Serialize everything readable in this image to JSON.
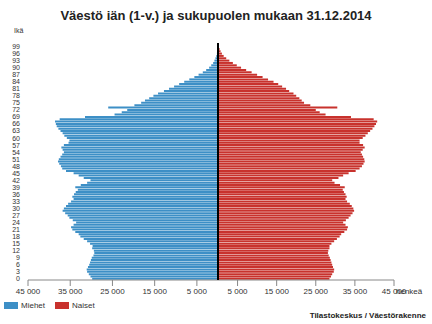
{
  "chart_data": {
    "type": "bar",
    "orientation": "horizontal",
    "title": "Väestö iän (1-v.) ja sukupuolen mukaan 31.12.2014",
    "y_label": "Ikä",
    "x_label": "henkeä",
    "source": "Tilastokeskus / Väestörakenne",
    "grid": false,
    "legend": "bottom left",
    "categories": [
      "0",
      null,
      null,
      "3",
      null,
      null,
      "6",
      null,
      null,
      "9",
      null,
      null,
      "12",
      null,
      null,
      "15",
      null,
      null,
      "18",
      null,
      null,
      "21",
      null,
      null,
      "24",
      null,
      null,
      "27",
      null,
      null,
      "30",
      null,
      null,
      "33",
      null,
      null,
      "36",
      null,
      null,
      "39",
      null,
      null,
      "42",
      null,
      null,
      "45",
      null,
      null,
      "48",
      null,
      null,
      "51",
      null,
      null,
      "54",
      null,
      null,
      "57",
      null,
      null,
      "60",
      null,
      null,
      "63",
      null,
      null,
      "66",
      null,
      null,
      "69",
      null,
      null,
      "72",
      null,
      null,
      "75",
      null,
      null,
      "78",
      null,
      null,
      "81",
      null,
      null,
      "84",
      null,
      null,
      "87",
      null,
      null,
      "90",
      null,
      null,
      "93",
      null,
      null,
      "96",
      null,
      null,
      "99",
      null
    ],
    "xlim": [
      0,
      45000
    ],
    "xticks": [
      {
        "value": 5000,
        "label": "5 000"
      },
      {
        "value": 15000,
        "label": "15 000"
      },
      {
        "value": 25000,
        "label": "25 000"
      },
      {
        "value": 35000,
        "label": "35 000"
      },
      {
        "value": 45000,
        "label": "45 000"
      }
    ],
    "series": [
      {
        "name": "Miehet",
        "color": "#3d8fc6",
        "values": [
          29800,
          30200,
          30600,
          31000,
          31100,
          30800,
          30500,
          30300,
          30100,
          29900,
          29500,
          29300,
          29400,
          29800,
          29700,
          30300,
          31000,
          31800,
          32600,
          33000,
          33800,
          34500,
          34800,
          34200,
          33600,
          34400,
          35200,
          35600,
          36200,
          36800,
          36500,
          36000,
          35500,
          34800,
          34200,
          34500,
          34100,
          33700,
          33200,
          33800,
          32500,
          31000,
          30200,
          31800,
          33000,
          34200,
          36000,
          36900,
          37200,
          37600,
          37900,
          37700,
          37300,
          36900,
          36500,
          36800,
          37100,
          36500,
          35400,
          35200,
          35800,
          36400,
          36800,
          37300,
          37800,
          38200,
          38400,
          38600,
          37500,
          31500,
          24500,
          22800,
          21500,
          26000,
          19800,
          18200,
          17300,
          16300,
          15300,
          14200,
          12800,
          11600,
          10400,
          9200,
          8000,
          6800,
          5600,
          4600,
          3600,
          2800,
          2100,
          1600,
          1150,
          850,
          600,
          400,
          260,
          170,
          100,
          60,
          40
        ]
      },
      {
        "name": "Naiset",
        "color": "#c8322d",
        "values": [
          28500,
          28900,
          29200,
          29600,
          29700,
          29400,
          29200,
          29000,
          28800,
          28600,
          28300,
          28100,
          28200,
          28500,
          28500,
          29000,
          29700,
          30400,
          31100,
          31500,
          32300,
          33000,
          33200,
          32600,
          32000,
          32700,
          33400,
          33900,
          34400,
          34800,
          34600,
          34200,
          33700,
          33000,
          32600,
          32900,
          32600,
          32200,
          31900,
          32400,
          31200,
          29800,
          29200,
          30800,
          32000,
          33400,
          35200,
          36200,
          36800,
          37200,
          37500,
          37400,
          37100,
          36800,
          36500,
          37000,
          37500,
          37100,
          36200,
          36200,
          37000,
          37700,
          38300,
          38900,
          39500,
          40000,
          40400,
          40700,
          39800,
          34000,
          27500,
          26000,
          25000,
          30500,
          23600,
          22000,
          21400,
          20800,
          20000,
          19300,
          18200,
          17400,
          16400,
          15400,
          14200,
          12800,
          11400,
          10000,
          8600,
          7200,
          5900,
          4800,
          3800,
          2900,
          2100,
          1450,
          1000,
          650,
          400,
          250,
          180
        ]
      }
    ]
  }
}
